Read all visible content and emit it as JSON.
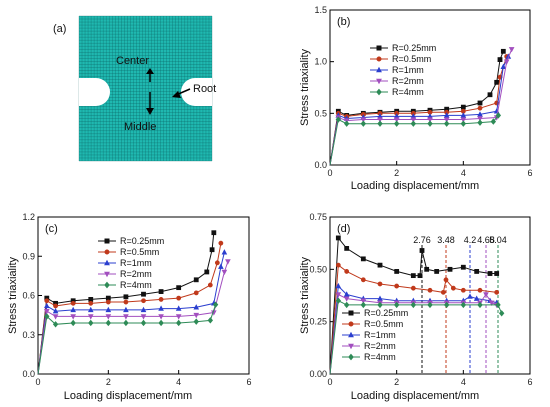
{
  "colors": {
    "R=0.25mm": "#111111",
    "R=0.5mm": "#c0391b",
    "R=1mm": "#2b3fcf",
    "R=2mm": "#a24fbf",
    "R=4mm": "#2e8b57",
    "mesh": "#1fb8b0",
    "mesh_line": "#0a5f5f"
  },
  "mesh_panel": {
    "label": "(a)",
    "center_label": "Center",
    "middle_label": "Middle",
    "root_label": "Root"
  },
  "chart_data": [
    {
      "id": "b",
      "type": "line",
      "label": "(b)",
      "xlabel": "Loading displacement/mm",
      "ylabel": "Stress triaxiality",
      "xlim": [
        0,
        6
      ],
      "ylim": [
        0,
        1.5
      ],
      "xticks": [
        0,
        2,
        4,
        6
      ],
      "yticks": [
        0.0,
        0.5,
        1.0,
        1.5
      ],
      "ytick_labels": [
        "0.0",
        "0.5",
        "1.0",
        "1.5"
      ],
      "legend_position": "center",
      "series": [
        {
          "name": "R=0.25mm",
          "marker": "square",
          "x": [
            0,
            0.25,
            0.5,
            1,
            1.5,
            2,
            2.5,
            3,
            3.5,
            4,
            4.5,
            4.8,
            5.0,
            5.1,
            5.2
          ],
          "y": [
            0,
            0.52,
            0.48,
            0.5,
            0.51,
            0.52,
            0.52,
            0.53,
            0.54,
            0.56,
            0.6,
            0.68,
            0.8,
            1.02,
            1.1
          ]
        },
        {
          "name": "R=0.5mm",
          "marker": "circle",
          "x": [
            0,
            0.25,
            0.5,
            1,
            1.5,
            2,
            2.5,
            3,
            3.5,
            4,
            4.5,
            5.0,
            5.1,
            5.3
          ],
          "y": [
            0,
            0.5,
            0.47,
            0.49,
            0.5,
            0.5,
            0.5,
            0.51,
            0.51,
            0.52,
            0.55,
            0.6,
            0.85,
            1.05
          ]
        },
        {
          "name": "R=1mm",
          "marker": "triangle-up",
          "x": [
            0,
            0.25,
            0.5,
            1,
            1.5,
            2,
            2.5,
            3,
            3.5,
            4,
            4.5,
            5.0,
            5.2,
            5.35
          ],
          "y": [
            0,
            0.48,
            0.45,
            0.46,
            0.47,
            0.47,
            0.47,
            0.47,
            0.48,
            0.48,
            0.49,
            0.52,
            0.95,
            1.05
          ]
        },
        {
          "name": "R=2mm",
          "marker": "triangle-down",
          "x": [
            0,
            0.25,
            0.5,
            1,
            1.5,
            2,
            2.5,
            3,
            3.5,
            4,
            4.5,
            5.0,
            5.3,
            5.45
          ],
          "y": [
            0,
            0.46,
            0.43,
            0.44,
            0.44,
            0.44,
            0.44,
            0.44,
            0.44,
            0.44,
            0.45,
            0.46,
            1.0,
            1.12
          ]
        },
        {
          "name": "R=4mm",
          "marker": "diamond",
          "x": [
            0,
            0.25,
            0.5,
            1,
            1.5,
            2,
            2.5,
            3,
            3.5,
            4,
            4.5,
            4.9,
            5.05
          ],
          "y": [
            0,
            0.44,
            0.4,
            0.4,
            0.4,
            0.4,
            0.4,
            0.4,
            0.4,
            0.4,
            0.41,
            0.42,
            0.48
          ]
        }
      ]
    },
    {
      "id": "c",
      "type": "line",
      "label": "(c)",
      "xlabel": "Loading displacement/mm",
      "ylabel": "Stress triaxiality",
      "xlim": [
        0,
        6
      ],
      "ylim": [
        0,
        1.2
      ],
      "xticks": [
        0,
        2,
        4,
        6
      ],
      "yticks": [
        0.0,
        0.3,
        0.6,
        0.9,
        1.2
      ],
      "ytick_labels": [
        "0.0",
        "0.3",
        "0.6",
        "0.9",
        "1.2"
      ],
      "legend_position": "center",
      "series": [
        {
          "name": "R=0.25mm",
          "marker": "square",
          "x": [
            0,
            0.25,
            0.5,
            1,
            1.5,
            2,
            2.5,
            3,
            3.5,
            4,
            4.5,
            4.8,
            4.95,
            5.0
          ],
          "y": [
            0,
            0.58,
            0.54,
            0.56,
            0.57,
            0.58,
            0.59,
            0.61,
            0.63,
            0.66,
            0.72,
            0.78,
            0.95,
            1.08
          ]
        },
        {
          "name": "R=0.5mm",
          "marker": "circle",
          "x": [
            0,
            0.25,
            0.5,
            1,
            1.5,
            2,
            2.5,
            3,
            3.5,
            4,
            4.5,
            4.9,
            5.1,
            5.2
          ],
          "y": [
            0,
            0.56,
            0.52,
            0.54,
            0.54,
            0.55,
            0.55,
            0.56,
            0.57,
            0.58,
            0.62,
            0.68,
            0.85,
            1.0
          ]
        },
        {
          "name": "R=1mm",
          "marker": "triangle-up",
          "x": [
            0,
            0.25,
            0.5,
            1,
            1.5,
            2,
            2.5,
            3,
            3.5,
            4,
            4.5,
            5.0,
            5.2,
            5.3
          ],
          "y": [
            0,
            0.52,
            0.48,
            0.49,
            0.49,
            0.49,
            0.49,
            0.49,
            0.5,
            0.5,
            0.51,
            0.54,
            0.82,
            0.93
          ]
        },
        {
          "name": "R=2mm",
          "marker": "triangle-down",
          "x": [
            0,
            0.25,
            0.5,
            1,
            1.5,
            2,
            2.5,
            3,
            3.5,
            4,
            4.5,
            5.0,
            5.3,
            5.4
          ],
          "y": [
            0,
            0.48,
            0.44,
            0.44,
            0.44,
            0.44,
            0.44,
            0.44,
            0.44,
            0.44,
            0.45,
            0.47,
            0.78,
            0.86
          ]
        },
        {
          "name": "R=4mm",
          "marker": "diamond",
          "x": [
            0,
            0.25,
            0.5,
            1,
            1.5,
            2,
            2.5,
            3,
            3.5,
            4,
            4.5,
            4.9,
            5.05
          ],
          "y": [
            0,
            0.44,
            0.38,
            0.39,
            0.39,
            0.39,
            0.39,
            0.39,
            0.39,
            0.39,
            0.4,
            0.41,
            0.53
          ]
        }
      ]
    },
    {
      "id": "d",
      "type": "line",
      "label": "(d)",
      "xlabel": "Loading displacement/mm",
      "ylabel": "Stress triaxiality",
      "xlim": [
        0,
        6
      ],
      "ylim": [
        0,
        0.75
      ],
      "xticks": [
        0,
        2,
        4,
        6
      ],
      "yticks": [
        0.0,
        0.25,
        0.5,
        0.75
      ],
      "ytick_labels": [
        "0.00",
        "0.25",
        "0.50",
        "0.75"
      ],
      "legend_position": "bottom-left",
      "annotations": [
        {
          "x": 2.76,
          "text": "2.76",
          "color": "#111111"
        },
        {
          "x": 3.48,
          "text": "3.48",
          "color": "#c0391b"
        },
        {
          "x": 4.2,
          "text": "4.2",
          "color": "#2b3fcf"
        },
        {
          "x": 4.68,
          "text": "4.68",
          "color": "#a24fbf"
        },
        {
          "x": 5.04,
          "text": "5.04",
          "color": "#2e8b57"
        }
      ],
      "series": [
        {
          "name": "R=0.25mm",
          "marker": "square",
          "x": [
            0,
            0.25,
            0.5,
            1,
            1.5,
            2,
            2.5,
            2.7,
            2.76,
            2.9,
            3.2,
            3.6,
            4.0,
            4.4,
            4.8,
            5.0
          ],
          "y": [
            0,
            0.65,
            0.6,
            0.55,
            0.52,
            0.49,
            0.47,
            0.47,
            0.59,
            0.5,
            0.49,
            0.5,
            0.51,
            0.49,
            0.48,
            0.48
          ]
        },
        {
          "name": "R=0.5mm",
          "marker": "circle",
          "x": [
            0,
            0.25,
            0.5,
            1,
            1.5,
            2,
            2.5,
            3,
            3.4,
            3.48,
            3.7,
            4.0,
            4.5,
            5.0
          ],
          "y": [
            0,
            0.52,
            0.49,
            0.45,
            0.43,
            0.42,
            0.41,
            0.4,
            0.39,
            0.45,
            0.41,
            0.4,
            0.4,
            0.39
          ]
        },
        {
          "name": "R=1mm",
          "marker": "triangle-up",
          "x": [
            0,
            0.25,
            0.5,
            1,
            1.5,
            2,
            2.5,
            3,
            3.5,
            4.0,
            4.2,
            4.4,
            4.8,
            5.0
          ],
          "y": [
            0,
            0.42,
            0.38,
            0.36,
            0.36,
            0.35,
            0.35,
            0.35,
            0.35,
            0.35,
            0.37,
            0.36,
            0.35,
            0.34
          ]
        },
        {
          "name": "R=2mm",
          "marker": "triangle-down",
          "x": [
            0,
            0.25,
            0.5,
            1,
            1.5,
            2,
            2.5,
            3,
            3.5,
            4.0,
            4.5,
            4.68,
            4.85,
            5.0
          ],
          "y": [
            0,
            0.38,
            0.36,
            0.35,
            0.34,
            0.34,
            0.34,
            0.34,
            0.34,
            0.34,
            0.34,
            0.38,
            0.34,
            0.33
          ]
        },
        {
          "name": "R=4mm",
          "marker": "diamond",
          "x": [
            0,
            0.25,
            0.5,
            1,
            1.5,
            2,
            2.5,
            3,
            3.5,
            4.0,
            4.5,
            5.04,
            5.15
          ],
          "y": [
            0,
            0.35,
            0.33,
            0.33,
            0.33,
            0.33,
            0.33,
            0.33,
            0.33,
            0.33,
            0.33,
            0.33,
            0.29
          ]
        }
      ]
    }
  ]
}
